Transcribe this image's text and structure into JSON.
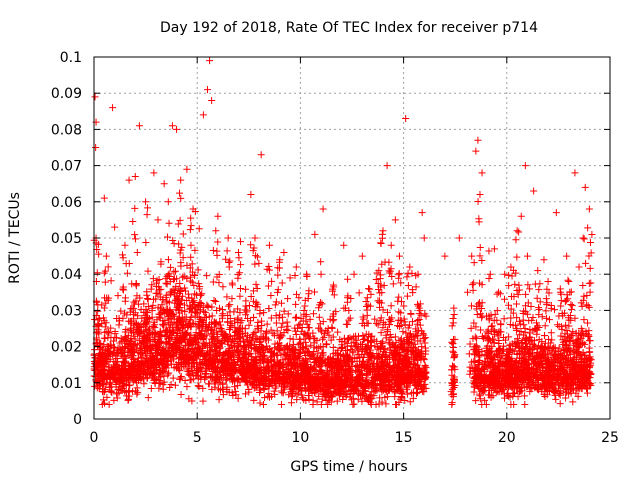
{
  "chart_data": {
    "type": "scatter",
    "title": "Day 192 of 2018, Rate Of TEC Index for receiver p714",
    "xlabel": "GPS time / hours",
    "ylabel": "ROTI / TECUs",
    "xlim": [
      0,
      25
    ],
    "ylim": [
      0,
      0.1
    ],
    "xticks": [
      "0",
      "5",
      "10",
      "15",
      "20",
      "25"
    ],
    "yticks": [
      "0",
      "0.01",
      "0.02",
      "0.03",
      "0.04",
      "0.05",
      "0.06",
      "0.07",
      "0.08",
      "0.09",
      "0.1"
    ],
    "grid": true,
    "marker": "+",
    "color": "#ff0000",
    "series": [
      {
        "name": "ROTI",
        "segments": [
          {
            "x_start": 0.0,
            "x_end": 16.1,
            "density_profile": [
              [
                0.0,
                0.014,
                0.006
              ],
              [
                1.0,
                0.013,
                0.005
              ],
              [
                2.0,
                0.016,
                0.007
              ],
              [
                3.0,
                0.017,
                0.007
              ],
              [
                4.0,
                0.022,
                0.009
              ],
              [
                5.0,
                0.019,
                0.008
              ],
              [
                6.0,
                0.016,
                0.007
              ],
              [
                8.0,
                0.014,
                0.006
              ],
              [
                10.0,
                0.012,
                0.005
              ],
              [
                12.0,
                0.011,
                0.005
              ],
              [
                14.0,
                0.013,
                0.006
              ],
              [
                16.0,
                0.013,
                0.005
              ]
            ]
          },
          {
            "x_start": 17.3,
            "x_end": 17.5,
            "density_profile": [
              [
                17.3,
                0.012,
                0.006
              ],
              [
                17.5,
                0.012,
                0.006
              ]
            ]
          },
          {
            "x_start": 18.4,
            "x_end": 24.1,
            "density_profile": [
              [
                18.4,
                0.012,
                0.005
              ],
              [
                19.5,
                0.012,
                0.005
              ],
              [
                21.0,
                0.013,
                0.005
              ],
              [
                22.5,
                0.012,
                0.005
              ],
              [
                24.1,
                0.013,
                0.005
              ]
            ]
          }
        ],
        "notable_points": [
          [
            0.05,
            0.089
          ],
          [
            0.1,
            0.082
          ],
          [
            0.08,
            0.075
          ],
          [
            0.9,
            0.086
          ],
          [
            2.2,
            0.081
          ],
          [
            3.8,
            0.081
          ],
          [
            4.0,
            0.08
          ],
          [
            5.5,
            0.091
          ],
          [
            5.6,
            0.099
          ],
          [
            5.7,
            0.088
          ],
          [
            5.3,
            0.084
          ],
          [
            8.1,
            0.073
          ],
          [
            15.1,
            0.083
          ],
          [
            14.2,
            0.07
          ],
          [
            18.6,
            0.077
          ],
          [
            18.5,
            0.074
          ],
          [
            18.8,
            0.068
          ],
          [
            20.9,
            0.07
          ],
          [
            21.3,
            0.063
          ],
          [
            23.3,
            0.068
          ],
          [
            23.8,
            0.064
          ],
          [
            2.9,
            0.068
          ],
          [
            1.7,
            0.066
          ],
          [
            3.4,
            0.065
          ],
          [
            4.5,
            0.069
          ],
          [
            6.0,
            0.056
          ],
          [
            7.6,
            0.062
          ],
          [
            11.1,
            0.058
          ],
          [
            12.1,
            0.048
          ],
          [
            12.6,
            0.04
          ],
          [
            13.0,
            0.045
          ],
          [
            15.9,
            0.057
          ],
          [
            17.0,
            0.045
          ],
          [
            17.7,
            0.05
          ],
          [
            19.4,
            0.047
          ],
          [
            20.7,
            0.056
          ],
          [
            22.4,
            0.057
          ],
          [
            22.9,
            0.045
          ],
          [
            0.5,
            0.061
          ],
          [
            1.0,
            0.053
          ],
          [
            7.1,
            0.049
          ],
          [
            9.2,
            0.046
          ],
          [
            10.7,
            0.051
          ],
          [
            9.5,
            0.039
          ],
          [
            14.6,
            0.055
          ],
          [
            16.0,
            0.05
          ],
          [
            18.1,
            0.035
          ],
          [
            19.9,
            0.04
          ],
          [
            21.8,
            0.044
          ],
          [
            23.5,
            0.042
          ]
        ],
        "spikes": [
          [
            0.1,
            0.05
          ],
          [
            0.6,
            0.045
          ],
          [
            1.5,
            0.048
          ],
          [
            2.0,
            0.067
          ],
          [
            2.5,
            0.06
          ],
          [
            3.1,
            0.055
          ],
          [
            3.6,
            0.06
          ],
          [
            4.2,
            0.066
          ],
          [
            4.8,
            0.058
          ],
          [
            5.9,
            0.052
          ],
          [
            6.5,
            0.05
          ],
          [
            7.0,
            0.046
          ],
          [
            7.8,
            0.05
          ],
          [
            8.5,
            0.048
          ],
          [
            9.0,
            0.044
          ],
          [
            9.8,
            0.042
          ],
          [
            10.3,
            0.04
          ],
          [
            11.0,
            0.04
          ],
          [
            11.6,
            0.037
          ],
          [
            12.3,
            0.034
          ],
          [
            13.3,
            0.036
          ],
          [
            13.8,
            0.041
          ],
          [
            14.0,
            0.052
          ],
          [
            14.4,
            0.048
          ],
          [
            14.8,
            0.045
          ],
          [
            15.3,
            0.042
          ],
          [
            15.7,
            0.04
          ],
          [
            18.3,
            0.045
          ],
          [
            18.7,
            0.062
          ],
          [
            19.2,
            0.04
          ],
          [
            19.6,
            0.035
          ],
          [
            20.2,
            0.042
          ],
          [
            20.5,
            0.052
          ],
          [
            21.0,
            0.045
          ],
          [
            21.5,
            0.041
          ],
          [
            22.0,
            0.038
          ],
          [
            22.6,
            0.035
          ],
          [
            23.0,
            0.038
          ],
          [
            23.7,
            0.05
          ],
          [
            24.0,
            0.058
          ]
        ]
      }
    ]
  }
}
